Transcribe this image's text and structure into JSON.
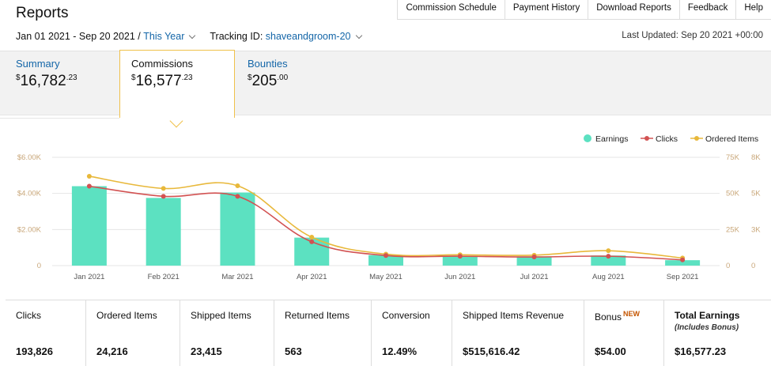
{
  "header": {
    "title": "Reports"
  },
  "topnav": [
    "Commission Schedule",
    "Payment History",
    "Download Reports",
    "Feedback",
    "Help"
  ],
  "filters": {
    "date_range": "Jan 01 2021 - Sep 20 2021 /",
    "period": "This Year",
    "tracking_label": "Tracking ID:",
    "tracking_id": "shaveandgroom-20"
  },
  "last_updated": "Last Updated: Sep 20 2021 +00:00",
  "tabs": [
    {
      "label": "Summary",
      "currency": "$",
      "whole": "16,782",
      "cents": ".23"
    },
    {
      "label": "Commissions",
      "currency": "$",
      "whole": "16,577",
      "cents": ".23"
    },
    {
      "label": "Bounties",
      "currency": "$",
      "whole": "205",
      "cents": ".00"
    }
  ],
  "legend": {
    "earnings": "Earnings",
    "clicks": "Clicks",
    "ordered": "Ordered Items"
  },
  "colors": {
    "earnings": "#5ce1c1",
    "clicks": "#d25252",
    "ordered": "#e8b83a",
    "link": "#1466a8",
    "accent": "#f0c14b"
  },
  "chart_data": {
    "type": "bar",
    "categories": [
      "Jan 2021",
      "Feb 2021",
      "Mar 2021",
      "Apr 2021",
      "May 2021",
      "Jun 2021",
      "Jul 2021",
      "Aug 2021",
      "Sep 2021"
    ],
    "series": [
      {
        "name": "Earnings",
        "type": "bar",
        "axis": "left",
        "values": [
          4400,
          3750,
          4050,
          1550,
          580,
          530,
          510,
          560,
          300
        ]
      },
      {
        "name": "Clicks",
        "type": "line",
        "axis": "right-outer",
        "values": [
          55000,
          48000,
          48000,
          16500,
          7000,
          6500,
          6000,
          6500,
          4000
        ]
      },
      {
        "name": "Ordered Items",
        "type": "line",
        "axis": "right-inner",
        "values": [
          6600,
          5700,
          5900,
          2100,
          850,
          800,
          770,
          1100,
          560
        ]
      }
    ],
    "y_left": {
      "ticks": [
        "0",
        "$2.00K",
        "$4.00K",
        "$6.00K"
      ],
      "max": 6000
    },
    "y_right_outer": {
      "ticks": [
        "0",
        "25K",
        "50K",
        "75K"
      ],
      "max": 75000
    },
    "y_right_inner": {
      "ticks": [
        "0",
        "3K",
        "5K",
        "8K"
      ],
      "max": 8000
    },
    "grid": true,
    "legend_position": "top-right"
  },
  "stats": [
    {
      "label": "Clicks",
      "value": "193,826"
    },
    {
      "label": "Ordered Items",
      "value": "24,216"
    },
    {
      "label": "Shipped Items",
      "value": "23,415"
    },
    {
      "label": "Returned Items",
      "value": "563"
    },
    {
      "label": "Conversion",
      "value": "12.49%"
    },
    {
      "label": "Shipped Items Revenue",
      "value": "$515,616.42"
    },
    {
      "label": "Bonus",
      "badge": "NEW",
      "value": "$54.00"
    },
    {
      "label": "Total Earnings",
      "sublabel": "(Includes Bonus)",
      "value": "$16,577.23"
    }
  ]
}
